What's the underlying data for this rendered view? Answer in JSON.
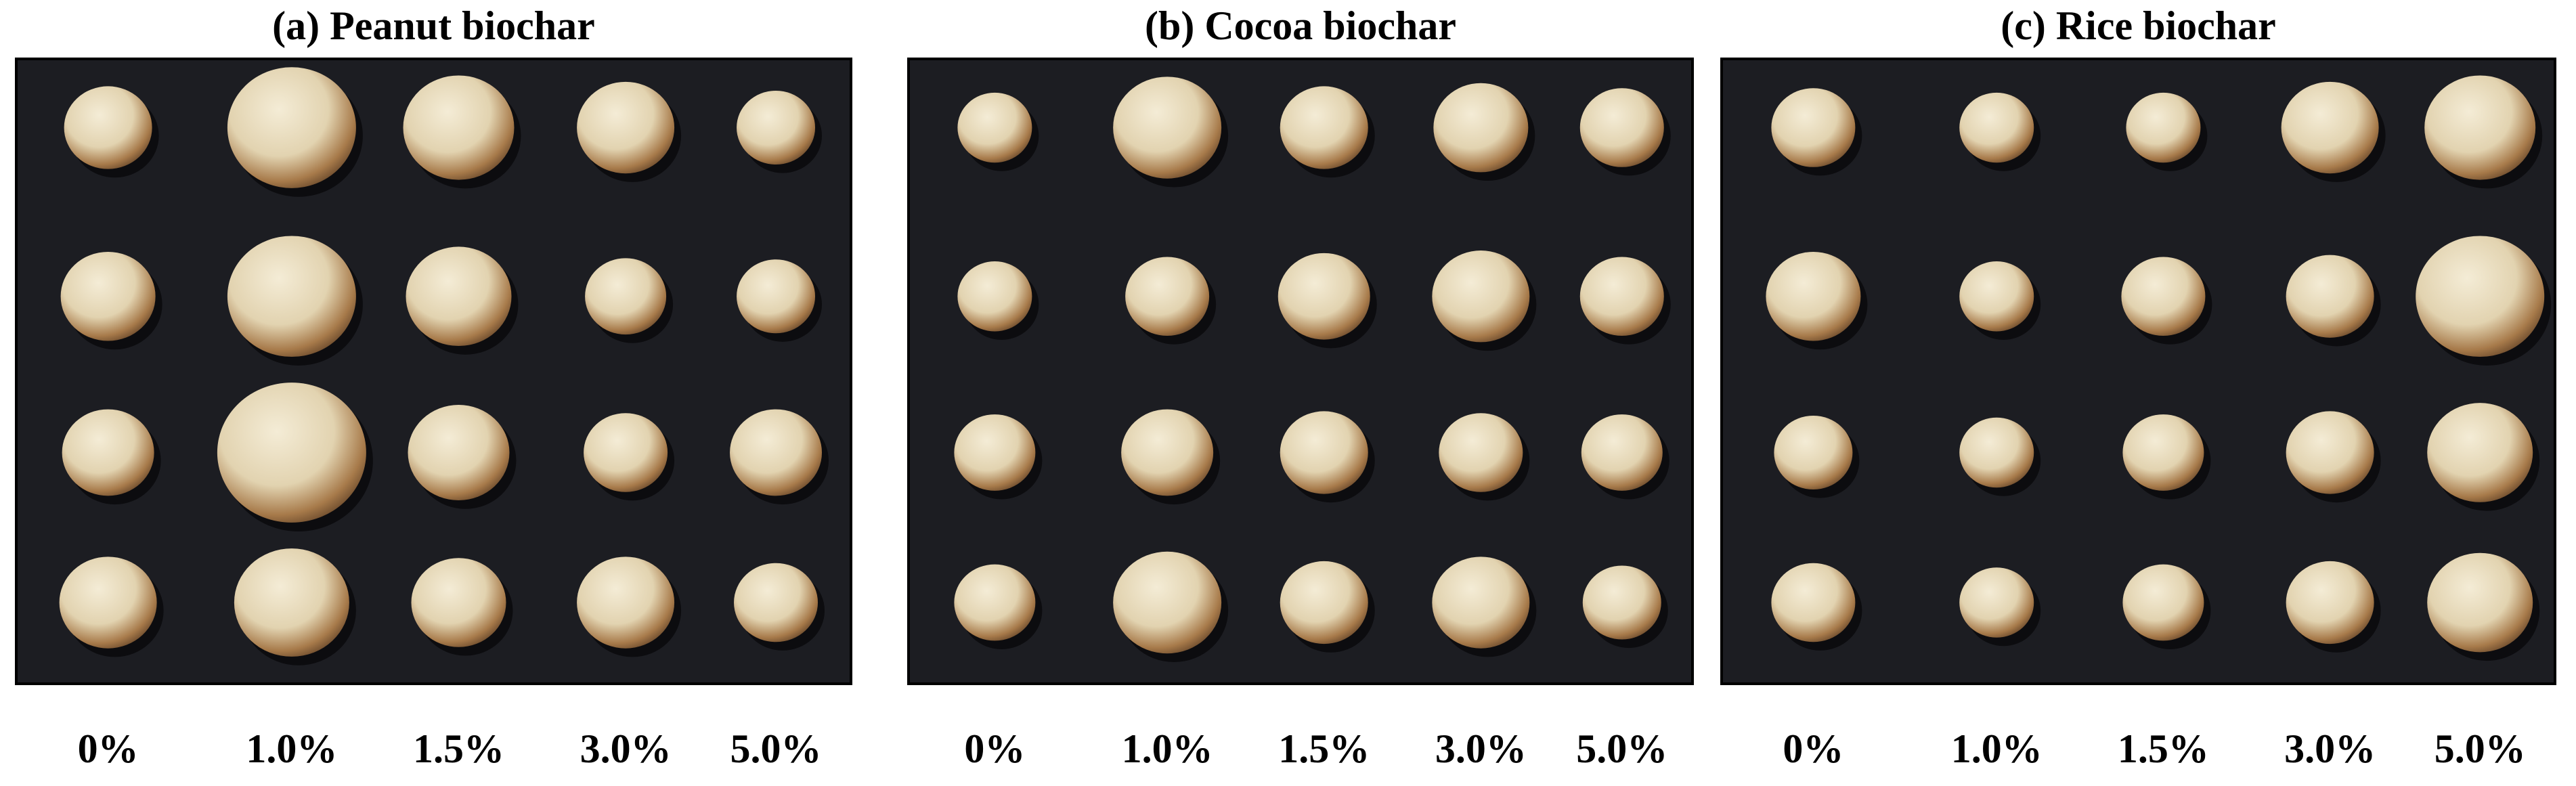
{
  "panels": [
    {
      "title": "(a) Peanut biochar",
      "labels": [
        "0%",
        "1.0%",
        "1.5%",
        "3.0%",
        "5.0%"
      ]
    },
    {
      "title": "(b) Cocoa biochar",
      "labels": [
        "0%",
        "1.0%",
        "1.5%",
        "3.0%",
        "5.0%"
      ]
    },
    {
      "title": "(c) Rice biochar",
      "labels": [
        "0%",
        "1.0%",
        "1.5%",
        "3.0%",
        "5.0%"
      ]
    }
  ]
}
